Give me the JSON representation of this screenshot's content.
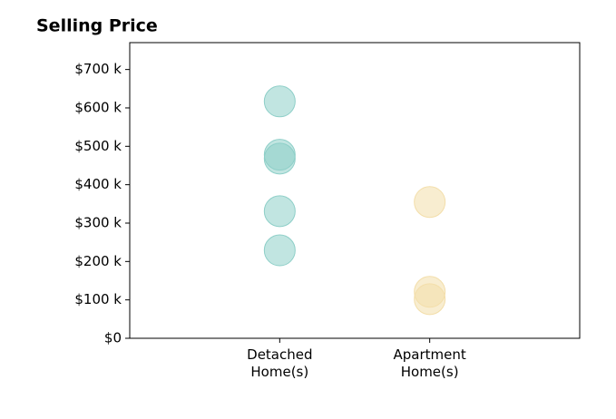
{
  "chart_data": {
    "type": "strip",
    "title": "Selling Price",
    "categories": [
      "Detached\nHome(s)",
      "Apartment\nHome(s)"
    ],
    "values": [
      [
        617000,
        478000,
        468000,
        331000,
        229000
      ],
      [
        355000,
        121000,
        102000
      ]
    ],
    "colors": [
      "#8ecfc8",
      "#f3deaa"
    ],
    "ylim": [
      0,
      770000
    ],
    "yticks": [
      {
        "value": 0,
        "label": "$0"
      },
      {
        "value": 100000,
        "label": "$100 k"
      },
      {
        "value": 200000,
        "label": "$200 k"
      },
      {
        "value": 300000,
        "label": "$300 k"
      },
      {
        "value": 400000,
        "label": "$400 k"
      },
      {
        "value": 500000,
        "label": "$500 k"
      },
      {
        "value": 600000,
        "label": "$600 k"
      },
      {
        "value": 700000,
        "label": "$700 k"
      }
    ]
  }
}
